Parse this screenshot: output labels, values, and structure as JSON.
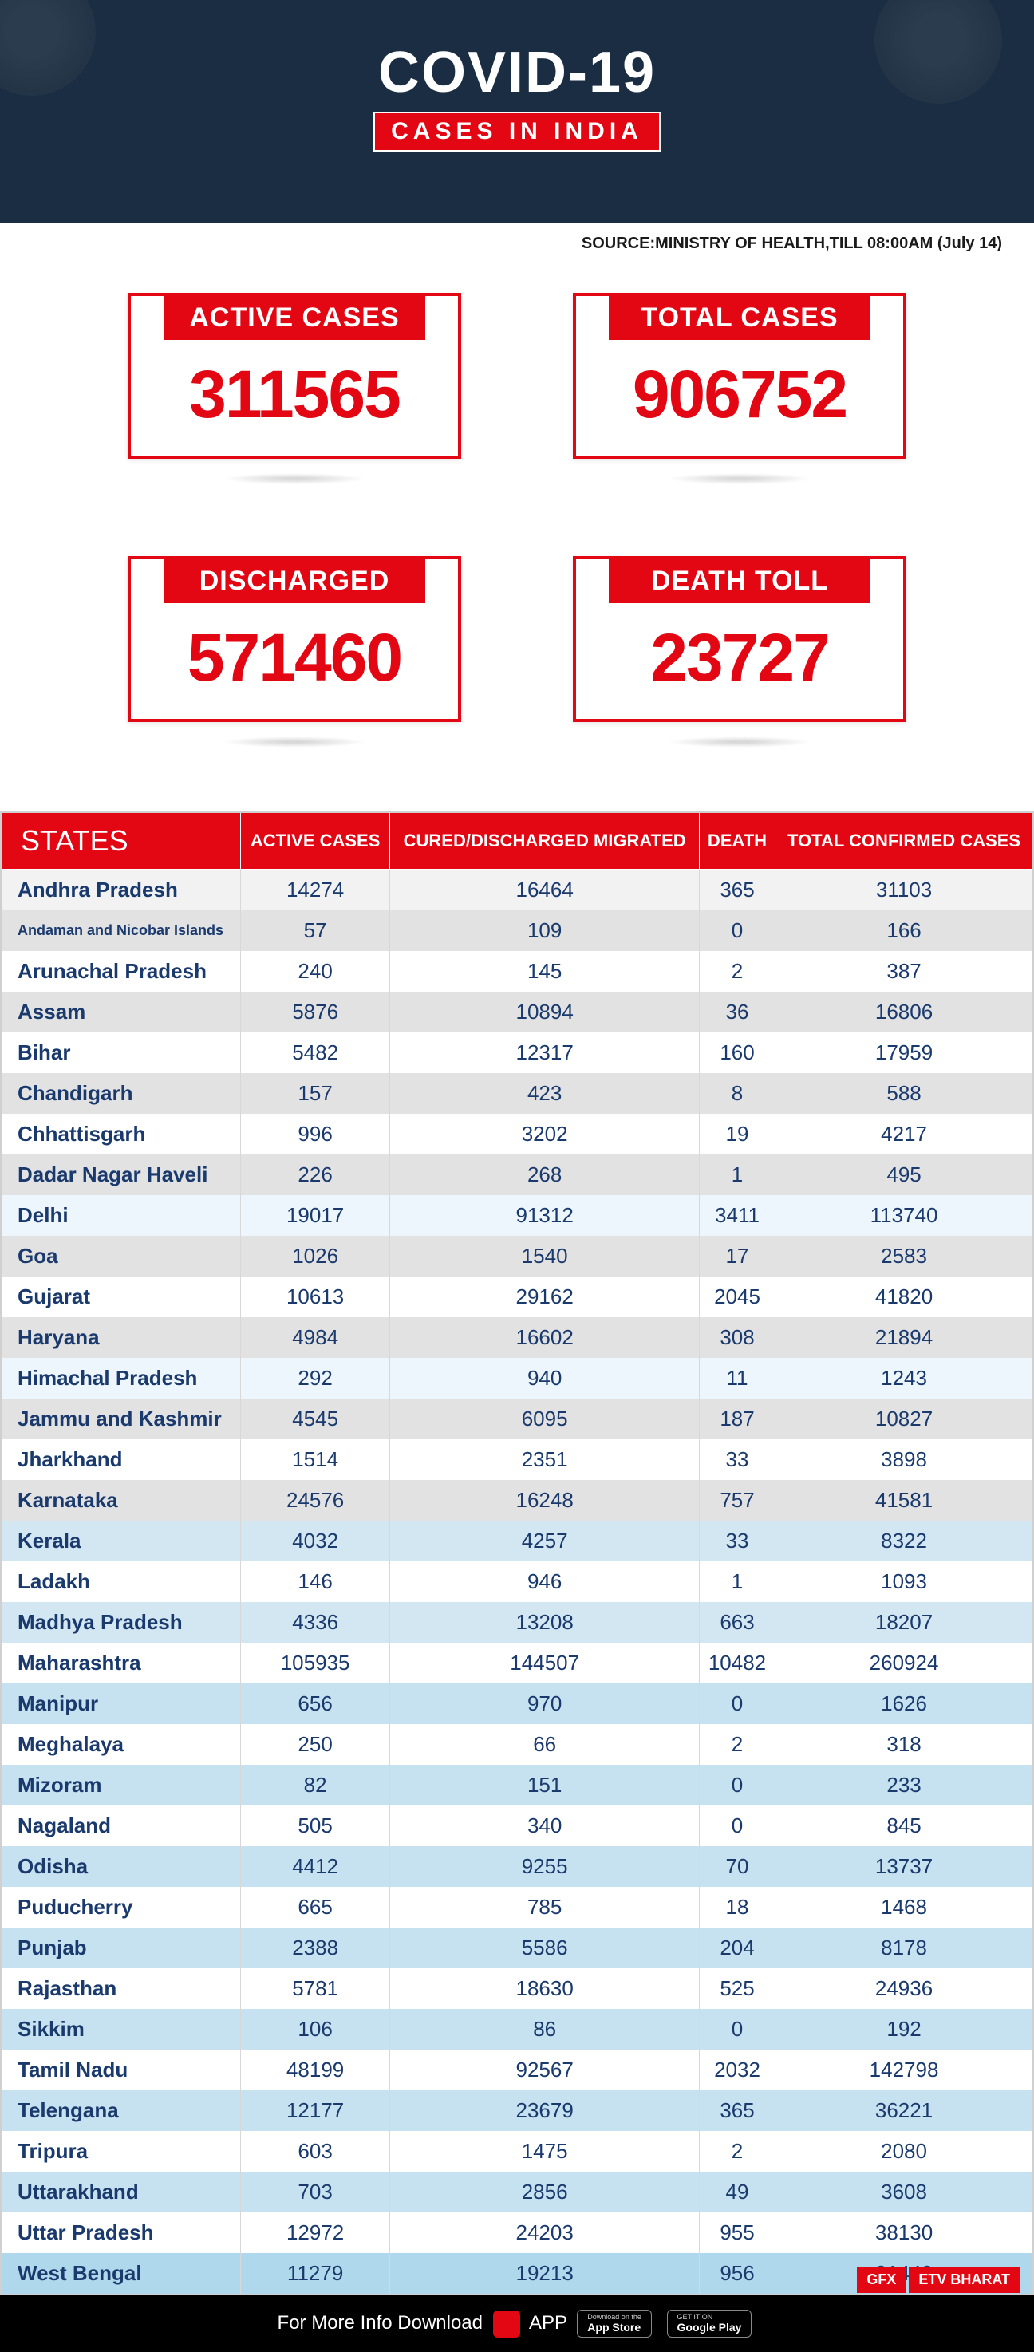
{
  "header": {
    "title": "COVID-19",
    "subtitle": "CASES IN INDIA",
    "bg_color": "#1a2d42",
    "accent_color": "#e30613",
    "title_color": "#ffffff"
  },
  "source": "SOURCE:MINISTRY OF HEALTH,TILL 08:00AM (July 14)",
  "stats": [
    {
      "label": "ACTIVE CASES",
      "value": "311565"
    },
    {
      "label": "TOTAL CASES",
      "value": "906752"
    },
    {
      "label": "DISCHARGED",
      "value": "571460"
    },
    {
      "label": "DEATH TOLL",
      "value": "23727"
    }
  ],
  "table": {
    "columns": [
      "STATES",
      "ACTIVE CASES",
      "CURED/DISCHARGED MIGRATED",
      "DEATH",
      "TOTAL CONFIRMED CASES"
    ],
    "header_bg": "#e30613",
    "header_color": "#ffffff",
    "row_colors_cycle": [
      "#f5f5f5",
      "#e8e8e8",
      "#ffffff",
      "#e8e8e8",
      "#edf6fc",
      "#e5eef5"
    ],
    "state_text_color": "#1a3a6e",
    "rows": [
      {
        "state": "Andhra Pradesh",
        "active": "14274",
        "cured": "16464",
        "death": "365",
        "total": "31103",
        "bg": "#f2f2f2"
      },
      {
        "state": "Andaman and Nicobar Islands",
        "active": "57",
        "cured": "109",
        "death": "0",
        "total": "166",
        "bg": "#e2e2e2",
        "small": true
      },
      {
        "state": "Arunachal Pradesh",
        "active": "240",
        "cured": "145",
        "death": "2",
        "total": "387",
        "bg": "#ffffff"
      },
      {
        "state": "Assam",
        "active": "5876",
        "cured": "10894",
        "death": "36",
        "total": "16806",
        "bg": "#e2e2e2"
      },
      {
        "state": "Bihar",
        "active": "5482",
        "cured": "12317",
        "death": "160",
        "total": "17959",
        "bg": "#ffffff"
      },
      {
        "state": "Chandigarh",
        "active": "157",
        "cured": "423",
        "death": "8",
        "total": "588",
        "bg": "#e2e2e2"
      },
      {
        "state": "Chhattisgarh",
        "active": "996",
        "cured": "3202",
        "death": "19",
        "total": "4217",
        "bg": "#ffffff"
      },
      {
        "state": "Dadar Nagar Haveli",
        "active": "226",
        "cured": "268",
        "death": "1",
        "total": "495",
        "bg": "#e2e2e2"
      },
      {
        "state": "Delhi",
        "active": "19017",
        "cured": "91312",
        "death": "3411",
        "total": "113740",
        "bg": "#edf6fc"
      },
      {
        "state": "Goa",
        "active": "1026",
        "cured": "1540",
        "death": "17",
        "total": "2583",
        "bg": "#e2e2e2"
      },
      {
        "state": "Gujarat",
        "active": "10613",
        "cured": "29162",
        "death": "2045",
        "total": "41820",
        "bg": "#ffffff"
      },
      {
        "state": "Haryana",
        "active": "4984",
        "cured": "16602",
        "death": "308",
        "total": "21894",
        "bg": "#e2e2e2"
      },
      {
        "state": "Himachal Pradesh",
        "active": "292",
        "cured": "940",
        "death": "11",
        "total": "1243",
        "bg": "#edf6fc"
      },
      {
        "state": "Jammu and Kashmir",
        "active": "4545",
        "cured": "6095",
        "death": "187",
        "total": "10827",
        "bg": "#e2e2e2"
      },
      {
        "state": "Jharkhand",
        "active": "1514",
        "cured": "2351",
        "death": "33",
        "total": "3898",
        "bg": "#ffffff"
      },
      {
        "state": "Karnataka",
        "active": "24576",
        "cured": "16248",
        "death": "757",
        "total": "41581",
        "bg": "#e2e2e2"
      },
      {
        "state": "Kerala",
        "active": "4032",
        "cured": "4257",
        "death": "33",
        "total": "8322",
        "bg": "#d3e7f2"
      },
      {
        "state": "Ladakh",
        "active": "146",
        "cured": "946",
        "death": "1",
        "total": "1093",
        "bg": "#ffffff"
      },
      {
        "state": "Madhya Pradesh",
        "active": "4336",
        "cured": "13208",
        "death": "663",
        "total": "18207",
        "bg": "#d3e7f2"
      },
      {
        "state": "Maharashtra",
        "active": "105935",
        "cured": "144507",
        "death": "10482",
        "total": "260924",
        "bg": "#ffffff"
      },
      {
        "state": "Manipur",
        "active": "656",
        "cured": "970",
        "death": "0",
        "total": "1626",
        "bg": "#c6e2f0"
      },
      {
        "state": "Meghalaya",
        "active": "250",
        "cured": "66",
        "death": "2",
        "total": "318",
        "bg": "#ffffff"
      },
      {
        "state": "Mizoram",
        "active": "82",
        "cured": "151",
        "death": "0",
        "total": "233",
        "bg": "#c6e2f0"
      },
      {
        "state": "Nagaland",
        "active": "505",
        "cured": "340",
        "death": "0",
        "total": "845",
        "bg": "#ffffff"
      },
      {
        "state": "Odisha",
        "active": "4412",
        "cured": "9255",
        "death": "70",
        "total": "13737",
        "bg": "#c6e2f0"
      },
      {
        "state": "Puducherry",
        "active": "665",
        "cured": "785",
        "death": "18",
        "total": "1468",
        "bg": "#ffffff"
      },
      {
        "state": "Punjab",
        "active": "2388",
        "cured": "5586",
        "death": "204",
        "total": "8178",
        "bg": "#c6e2f0"
      },
      {
        "state": "Rajasthan",
        "active": "5781",
        "cured": "18630",
        "death": "525",
        "total": "24936",
        "bg": "#ffffff"
      },
      {
        "state": "Sikkim",
        "active": "106",
        "cured": "86",
        "death": "0",
        "total": "192",
        "bg": "#c6e2f0"
      },
      {
        "state": "Tamil Nadu",
        "active": "48199",
        "cured": "92567",
        "death": "2032",
        "total": "142798",
        "bg": "#ffffff"
      },
      {
        "state": "Telengana",
        "active": "12177",
        "cured": "23679",
        "death": "365",
        "total": "36221",
        "bg": "#c6e2f0"
      },
      {
        "state": "Tripura",
        "active": "603",
        "cured": "1475",
        "death": "2",
        "total": "2080",
        "bg": "#ffffff"
      },
      {
        "state": "Uttarakhand",
        "active": "703",
        "cured": "2856",
        "death": "49",
        "total": "3608",
        "bg": "#c6e2f0"
      },
      {
        "state": "Uttar Pradesh",
        "active": "12972",
        "cured": "24203",
        "death": "955",
        "total": "38130",
        "bg": "#ffffff"
      },
      {
        "state": "West Bengal",
        "active": "11279",
        "cured": "19213",
        "death": "956",
        "total": "31448",
        "bg": "#b0d8ec"
      }
    ]
  },
  "footer": {
    "text": "For More Info Download",
    "app_label": "APP",
    "gfx": "GFX",
    "etv": "ETV BHARAT",
    "appstore_small": "Download on the",
    "appstore_big": "App Store",
    "play_small": "GET IT ON",
    "play_big": "Google Play"
  }
}
